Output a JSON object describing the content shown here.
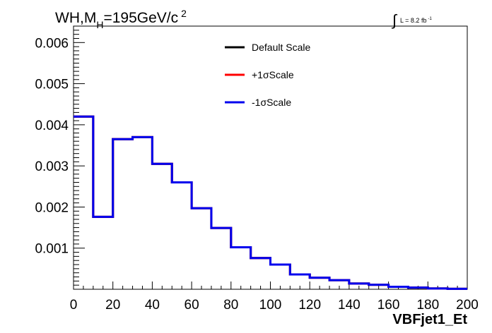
{
  "chart_data": {
    "type": "line",
    "title_main": "WH,M",
    "title_sub": "H",
    "title_rest": "=195GeV/c",
    "title_sup": "2",
    "lumi_label": "L = 8.2 fb",
    "lumi_sup": "-1",
    "lumi_integral": "∫",
    "xlabel": "VBFjet1_Et",
    "ylabel": "",
    "xlim": [
      0,
      200
    ],
    "ylim": [
      0,
      0.0064
    ],
    "grid": false,
    "legend_position": "top-center",
    "x_tick_labels": [
      "0",
      "20",
      "40",
      "60",
      "80",
      "100",
      "120",
      "140",
      "160",
      "180",
      "200"
    ],
    "y_tick_labels": [
      "0.001",
      "0.002",
      "0.003",
      "0.004",
      "0.005",
      "0.006"
    ],
    "bin_edges": [
      0,
      10,
      20,
      30,
      40,
      50,
      60,
      70,
      80,
      90,
      100,
      110,
      120,
      130,
      140,
      150,
      160,
      170,
      180,
      190,
      200
    ],
    "series": [
      {
        "name": "Default Scale",
        "color": "#000000",
        "values": [
          0.0042,
          0.00176,
          0.00365,
          0.0037,
          0.00305,
          0.0026,
          0.00197,
          0.00149,
          0.00102,
          0.00076,
          0.0006,
          0.00036,
          0.00028,
          0.00022,
          0.00014,
          0.00011,
          6e-05,
          4e-05,
          2e-05,
          1e-05
        ]
      },
      {
        "name": "+1σScale",
        "color": "#ff0000",
        "values": [
          0.0042,
          0.00176,
          0.00365,
          0.0037,
          0.00305,
          0.0026,
          0.00197,
          0.00149,
          0.00102,
          0.00076,
          0.0006,
          0.00036,
          0.00028,
          0.00022,
          0.00014,
          0.00011,
          6e-05,
          4e-05,
          2e-05,
          1e-05
        ]
      },
      {
        "name": "-1σScale",
        "color": "#0000ee",
        "values": [
          0.0042,
          0.00176,
          0.00365,
          0.0037,
          0.00305,
          0.0026,
          0.00197,
          0.00149,
          0.00102,
          0.00076,
          0.0006,
          0.00036,
          0.00028,
          0.00022,
          0.00014,
          0.00011,
          6e-05,
          4e-05,
          2e-05,
          1e-05
        ]
      }
    ]
  }
}
